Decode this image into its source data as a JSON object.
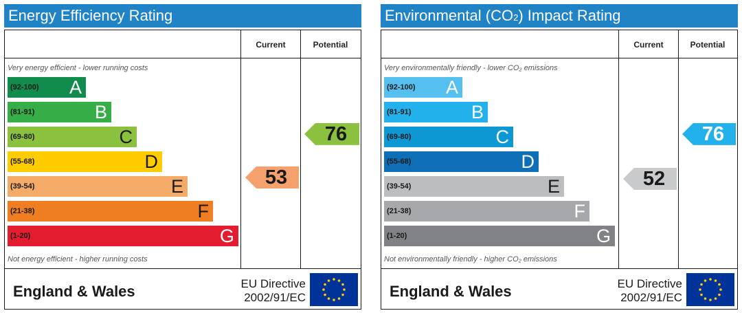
{
  "colors": {
    "header_bg": "#1f83c6",
    "energy_bands": [
      "#128c4c",
      "#36ad47",
      "#8cc13f",
      "#ffcc00",
      "#f4ab67",
      "#ef7e22",
      "#e31d2f"
    ],
    "co2_bands": [
      "#55c0ef",
      "#23b1eb",
      "#0e98d3",
      "#0f6fb6",
      "#bbbdbf",
      "#a6a8ab",
      "#808285"
    ],
    "energy_current": "#f4a16e",
    "energy_potential": "#8cc13f",
    "co2_current": "#c9cacc",
    "co2_potential": "#23b1eb",
    "flag_blue": "#003399",
    "flag_star": "#ffcc00"
  },
  "chart_data": [
    {
      "type": "bar",
      "title": "Energy Efficiency Rating",
      "columns": [
        "Current",
        "Potential"
      ],
      "caption_top": "Very energy efficient - lower running costs",
      "caption_bottom": "Not energy efficient - higher running costs",
      "bands": [
        {
          "range": "(92-100)",
          "letter": "A"
        },
        {
          "range": "(81-91)",
          "letter": "B"
        },
        {
          "range": "(69-80)",
          "letter": "C"
        },
        {
          "range": "(55-68)",
          "letter": "D"
        },
        {
          "range": "(39-54)",
          "letter": "E"
        },
        {
          "range": "(21-38)",
          "letter": "F"
        },
        {
          "range": "(1-20)",
          "letter": "G"
        }
      ],
      "current": 53,
      "potential": 76,
      "region": "England & Wales",
      "directive_line1": "EU Directive",
      "directive_line2": "2002/91/EC"
    },
    {
      "type": "bar",
      "title_prefix": "Environmental (CO",
      "title_sub": "2",
      "title_suffix": ") Impact Rating",
      "columns": [
        "Current",
        "Potential"
      ],
      "caption_top": "Very environmentally friendly - lower CO₂ emissions",
      "caption_bottom": "Not environmentally friendly - higher CO₂ emissions",
      "bands": [
        {
          "range": "(92-100)",
          "letter": "A"
        },
        {
          "range": "(81-91)",
          "letter": "B"
        },
        {
          "range": "(69-80)",
          "letter": "C"
        },
        {
          "range": "(55-68)",
          "letter": "D"
        },
        {
          "range": "(39-54)",
          "letter": "E"
        },
        {
          "range": "(21-38)",
          "letter": "F"
        },
        {
          "range": "(1-20)",
          "letter": "G"
        }
      ],
      "current": 52,
      "potential": 76,
      "region": "England & Wales",
      "directive_line1": "EU Directive",
      "directive_line2": "2002/91/EC"
    }
  ]
}
